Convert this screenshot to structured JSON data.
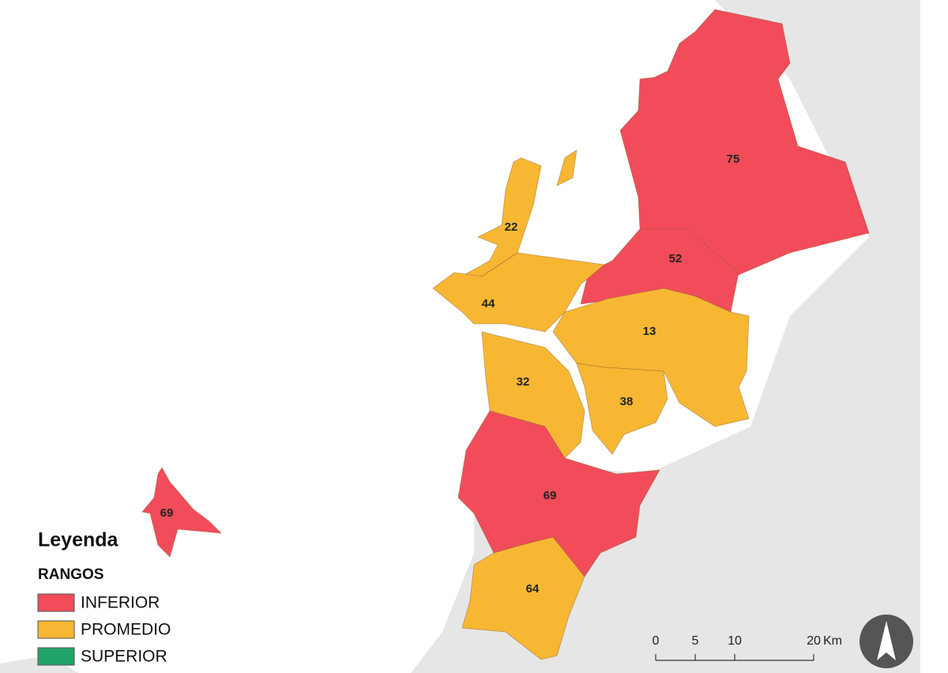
{
  "legend": {
    "title": "Leyenda",
    "subtitle": "RANGOS",
    "items": [
      {
        "label": "INFERIOR",
        "color": "#f24c5a"
      },
      {
        "label": "PROMEDIO",
        "color": "#f7b733"
      },
      {
        "label": "SUPERIOR",
        "color": "#21a46a"
      }
    ]
  },
  "regions": [
    {
      "label": 75,
      "color": "#f24c5a"
    },
    {
      "label": 52,
      "color": "#f24c5a"
    },
    {
      "label": 22,
      "color": "#f7b733"
    },
    {
      "label": 44,
      "color": "#f7b733"
    },
    {
      "label": 13,
      "color": "#f7b733"
    },
    {
      "label": 32,
      "color": "#f7b733"
    },
    {
      "label": 38,
      "color": "#f7b733"
    },
    {
      "label": 69,
      "color": "#f24c5a"
    },
    {
      "label": 64,
      "color": "#f7b733"
    },
    {
      "label": 69,
      "color": "#f24c5a"
    }
  ],
  "scale_bar": {
    "ticks": [
      0,
      5,
      10,
      20
    ],
    "unit": "Km"
  }
}
